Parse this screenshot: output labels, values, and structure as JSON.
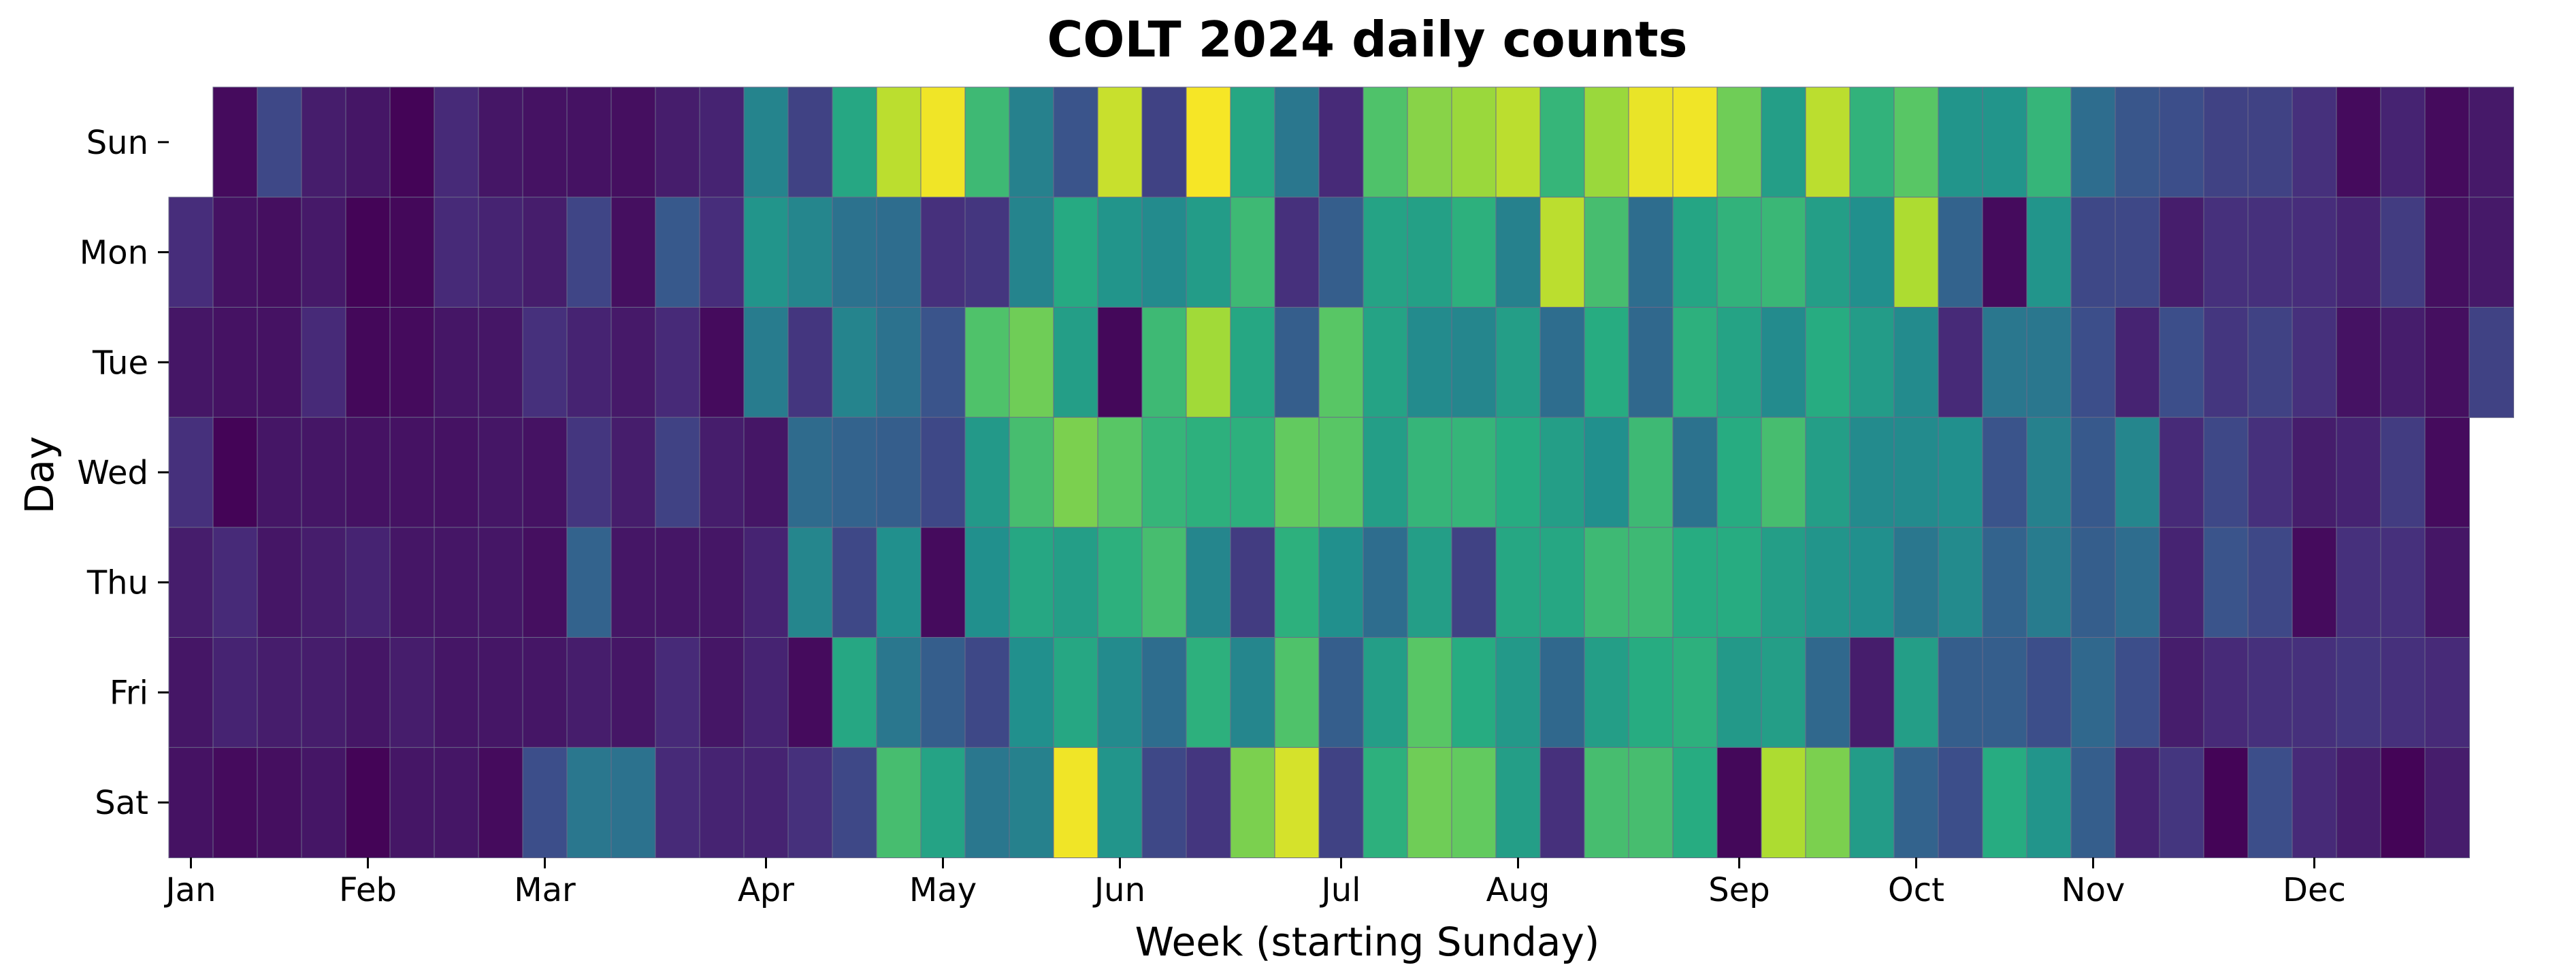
{
  "chart_data": {
    "type": "heatmap",
    "title": "COLT 2024 daily counts",
    "xlabel": "Week (starting Sunday)",
    "ylabel": "Day",
    "rows": [
      "Sun",
      "Mon",
      "Tue",
      "Wed",
      "Thu",
      "Fri",
      "Sat"
    ],
    "month_ticks": [
      {
        "label": "Jan",
        "week": 0
      },
      {
        "label": "Feb",
        "week": 4
      },
      {
        "label": "Mar",
        "week": 8
      },
      {
        "label": "Apr",
        "week": 13
      },
      {
        "label": "May",
        "week": 17
      },
      {
        "label": "Jun",
        "week": 21
      },
      {
        "label": "Jul",
        "week": 26
      },
      {
        "label": "Aug",
        "week": 30
      },
      {
        "label": "Sep",
        "week": 35
      },
      {
        "label": "Oct",
        "week": 39
      },
      {
        "label": "Nov",
        "week": 43
      },
      {
        "label": "Dec",
        "week": 48
      }
    ],
    "n_weeks": 53,
    "colormap": "viridis",
    "value_range": [
      0,
      1
    ],
    "values": [
      [
        null,
        0.03,
        0.22,
        0.08,
        0.06,
        0.01,
        0.12,
        0.06,
        0.05,
        0.05,
        0.04,
        0.08,
        0.1,
        0.45,
        0.2,
        0.6,
        0.9,
        0.98,
        0.68,
        0.44,
        0.26,
        0.92,
        0.2,
        0.99,
        0.6,
        0.4,
        0.12,
        0.72,
        0.82,
        0.85,
        0.9,
        0.66,
        0.85,
        0.97,
        0.98,
        0.78,
        0.56,
        0.9,
        0.65,
        0.74,
        0.52,
        0.52,
        0.66,
        0.36,
        0.27,
        0.24,
        0.2,
        0.2,
        0.14,
        0.03,
        0.1,
        0.03,
        0.07
      ],
      [
        0.13,
        0.05,
        0.04,
        0.07,
        0.01,
        0.02,
        0.12,
        0.1,
        0.08,
        0.21,
        0.04,
        0.28,
        0.13,
        0.52,
        0.46,
        0.38,
        0.36,
        0.14,
        0.16,
        0.45,
        0.61,
        0.52,
        0.48,
        0.55,
        0.68,
        0.14,
        0.3,
        0.58,
        0.57,
        0.64,
        0.44,
        0.9,
        0.7,
        0.36,
        0.59,
        0.65,
        0.67,
        0.56,
        0.5,
        0.88,
        0.32,
        0.03,
        0.52,
        0.22,
        0.22,
        0.08,
        0.14,
        0.14,
        0.13,
        0.1,
        0.18,
        0.04,
        0.07
      ],
      [
        0.06,
        0.05,
        0.05,
        0.12,
        0.02,
        0.03,
        0.06,
        0.06,
        0.14,
        0.1,
        0.07,
        0.12,
        0.03,
        0.42,
        0.16,
        0.45,
        0.38,
        0.26,
        0.72,
        0.78,
        0.56,
        0.02,
        0.68,
        0.86,
        0.6,
        0.3,
        0.74,
        0.58,
        0.48,
        0.46,
        0.56,
        0.36,
        0.62,
        0.34,
        0.64,
        0.58,
        0.48,
        0.62,
        0.55,
        0.48,
        0.12,
        0.4,
        0.4,
        0.24,
        0.1,
        0.24,
        0.16,
        0.2,
        0.14,
        0.05,
        0.08,
        0.04,
        0.2
      ],
      [
        0.14,
        0.01,
        0.06,
        0.06,
        0.05,
        0.05,
        0.05,
        0.06,
        0.05,
        0.16,
        0.08,
        0.2,
        0.08,
        0.06,
        0.35,
        0.32,
        0.3,
        0.22,
        0.54,
        0.7,
        0.8,
        0.74,
        0.66,
        0.64,
        0.64,
        0.76,
        0.74,
        0.56,
        0.66,
        0.66,
        0.62,
        0.56,
        0.5,
        0.68,
        0.38,
        0.62,
        0.7,
        0.56,
        0.48,
        0.48,
        0.5,
        0.26,
        0.44,
        0.28,
        0.46,
        0.12,
        0.22,
        0.14,
        0.08,
        0.1,
        0.18,
        0.03,
        null
      ],
      [
        0.08,
        0.12,
        0.06,
        0.08,
        0.1,
        0.06,
        0.06,
        0.06,
        0.04,
        0.32,
        0.06,
        0.06,
        0.06,
        0.1,
        0.46,
        0.22,
        0.5,
        0.03,
        0.5,
        0.6,
        0.56,
        0.64,
        0.7,
        0.46,
        0.18,
        0.64,
        0.5,
        0.36,
        0.56,
        0.2,
        0.6,
        0.6,
        0.68,
        0.68,
        0.62,
        0.62,
        0.56,
        0.52,
        0.5,
        0.4,
        0.48,
        0.32,
        0.42,
        0.3,
        0.36,
        0.1,
        0.26,
        0.22,
        0.03,
        0.14,
        0.14,
        0.06,
        null
      ],
      [
        0.06,
        0.1,
        0.08,
        0.08,
        0.06,
        0.08,
        0.06,
        0.06,
        0.06,
        0.08,
        0.06,
        0.12,
        0.06,
        0.1,
        0.03,
        0.6,
        0.4,
        0.3,
        0.22,
        0.5,
        0.6,
        0.48,
        0.36,
        0.64,
        0.46,
        0.72,
        0.3,
        0.56,
        0.74,
        0.62,
        0.54,
        0.34,
        0.56,
        0.62,
        0.64,
        0.54,
        0.56,
        0.34,
        0.08,
        0.56,
        0.3,
        0.3,
        0.24,
        0.34,
        0.24,
        0.08,
        0.12,
        0.14,
        0.14,
        0.16,
        0.14,
        0.12,
        null
      ],
      [
        0.05,
        0.03,
        0.04,
        0.06,
        0.01,
        0.06,
        0.06,
        0.03,
        0.24,
        0.4,
        0.38,
        0.12,
        0.1,
        0.1,
        0.14,
        0.22,
        0.7,
        0.58,
        0.4,
        0.44,
        0.98,
        0.52,
        0.22,
        0.16,
        0.8,
        0.94,
        0.2,
        0.64,
        0.78,
        0.76,
        0.56,
        0.14,
        0.7,
        0.7,
        0.62,
        0.02,
        0.88,
        0.8,
        0.55,
        0.32,
        0.24,
        0.62,
        0.52,
        0.3,
        0.1,
        0.16,
        0.01,
        0.24,
        0.12,
        0.08,
        0.01,
        0.08,
        null
      ]
    ]
  }
}
